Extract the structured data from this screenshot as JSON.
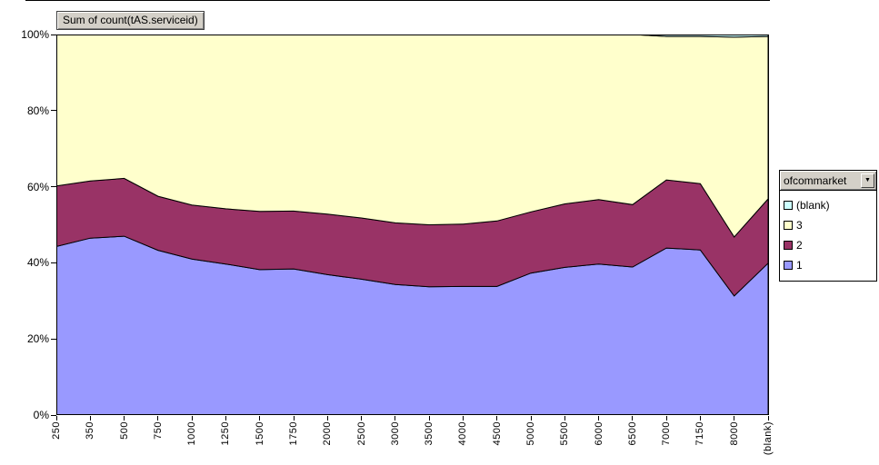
{
  "chart": {
    "field_button_label": "Sum of count(tAS.serviceid)",
    "y_axis_tick_labels": [
      "0%",
      "20%",
      "40%",
      "60%",
      "80%",
      "100%"
    ],
    "legend": {
      "field_label": "ofcommarket",
      "dropdown_icon": "▼",
      "items": [
        {
          "label": "(blank)",
          "color": "#CCFFFF"
        },
        {
          "label": "3",
          "color": "#FFFFCC"
        },
        {
          "label": "2",
          "color": "#993366"
        },
        {
          "label": "1",
          "color": "#9999FF"
        }
      ]
    },
    "colors": {
      "series_1": "#9999FF",
      "series_2": "#993366",
      "series_3": "#FFFFCC",
      "series_blank": "#CCFFFF",
      "button_face": "#D4D0C8",
      "border": "#000000"
    }
  },
  "chart_data": {
    "type": "area",
    "stacking": "percent",
    "title": "Sum of count(tAS.serviceid)",
    "xlabel": "",
    "ylabel": "",
    "ylim": [
      0,
      100
    ],
    "y_tick_format": "percent",
    "grid": false,
    "legend_position": "right",
    "legend_title": "ofcommarket",
    "categories": [
      "250",
      "350",
      "500",
      "750",
      "1000",
      "1250",
      "1500",
      "1750",
      "2000",
      "2500",
      "3000",
      "3500",
      "4000",
      "4500",
      "5000",
      "5500",
      "6000",
      "6500",
      "7000",
      "7150",
      "8000",
      "(blank)"
    ],
    "series": [
      {
        "name": "1",
        "color": "#9999FF",
        "values": [
          44.3,
          46.5,
          47.0,
          43.3,
          41.0,
          39.7,
          38.2,
          38.4,
          36.9,
          35.7,
          34.3,
          33.7,
          33.8,
          33.8,
          37.3,
          38.8,
          39.7,
          38.9,
          43.9,
          43.4,
          31.3,
          39.9
        ]
      },
      {
        "name": "2",
        "color": "#993366",
        "values": [
          15.9,
          15.0,
          15.2,
          14.2,
          14.2,
          14.5,
          15.3,
          15.2,
          15.9,
          16.1,
          16.2,
          16.3,
          16.4,
          17.2,
          16.1,
          16.7,
          16.9,
          16.4,
          17.9,
          17.4,
          15.5,
          16.9
        ]
      },
      {
        "name": "3",
        "color": "#FFFFCC",
        "values": [
          39.8,
          38.5,
          37.8,
          42.5,
          44.8,
          45.8,
          46.5,
          46.4,
          47.2,
          48.2,
          49.5,
          50.0,
          49.8,
          49.0,
          46.6,
          44.5,
          43.4,
          44.7,
          37.7,
          38.7,
          52.5,
          42.7
        ]
      },
      {
        "name": "(blank)",
        "color": "#CCFFFF",
        "values": [
          0,
          0,
          0,
          0,
          0,
          0,
          0,
          0,
          0,
          0,
          0,
          0,
          0,
          0,
          0,
          0,
          0,
          0,
          0.5,
          0.5,
          0.7,
          0.5
        ]
      }
    ]
  }
}
